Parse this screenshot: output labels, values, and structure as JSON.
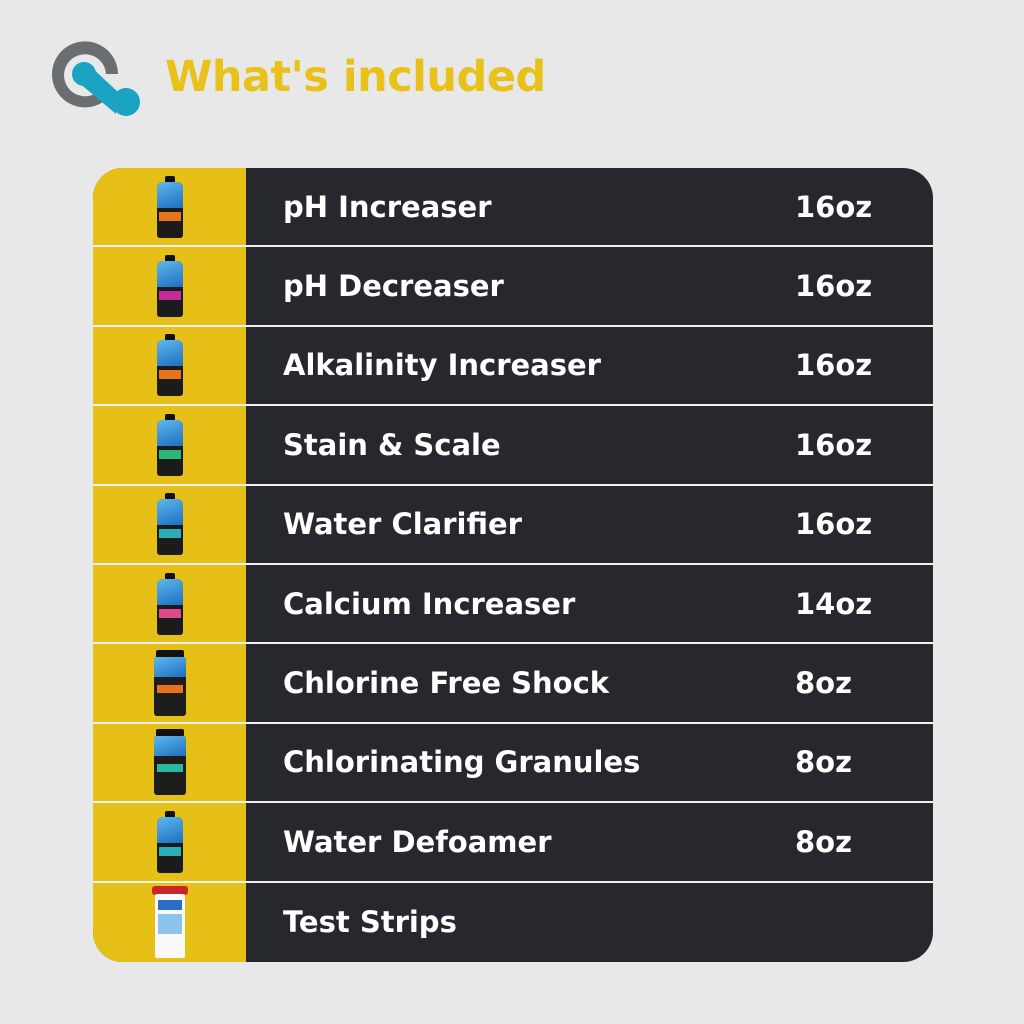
{
  "header": {
    "title": "What's included",
    "logo_icon": "q-logo-icon"
  },
  "colors": {
    "background": "#e8e8e8",
    "accent_yellow": "#e6bf17",
    "title_yellow": "#e8c21a",
    "table_dark": "#26282e",
    "logo_gray": "#6a6e70",
    "logo_teal": "#1aa3c2"
  },
  "items": [
    {
      "name": "pH Increaser",
      "size": "16oz",
      "type": "bottle",
      "accent": "#e8731c"
    },
    {
      "name": "pH Decreaser",
      "size": "16oz",
      "type": "bottle",
      "accent": "#c42a9a"
    },
    {
      "name": "Alkalinity Increaser",
      "size": "16oz",
      "type": "bottle",
      "accent": "#e8731c"
    },
    {
      "name": "Stain & Scale",
      "size": "16oz",
      "type": "bottle",
      "accent": "#2ab87a"
    },
    {
      "name": "Water Clarifier",
      "size": "16oz",
      "type": "bottle",
      "accent": "#28b0b8"
    },
    {
      "name": "Calcium Increaser",
      "size": "14oz",
      "type": "bottle",
      "accent": "#e04a8a"
    },
    {
      "name": "Chlorine Free Shock",
      "size": "8oz",
      "type": "jar",
      "accent": "#e8731c"
    },
    {
      "name": "Chlorinating Granules",
      "size": "8oz",
      "type": "jar",
      "accent": "#2ab8a0"
    },
    {
      "name": "Water Defoamer",
      "size": "8oz",
      "type": "bottle",
      "accent": "#28b0b8"
    },
    {
      "name": "Test Strips",
      "size": "",
      "type": "strips",
      "accent": "#c8262a"
    }
  ]
}
